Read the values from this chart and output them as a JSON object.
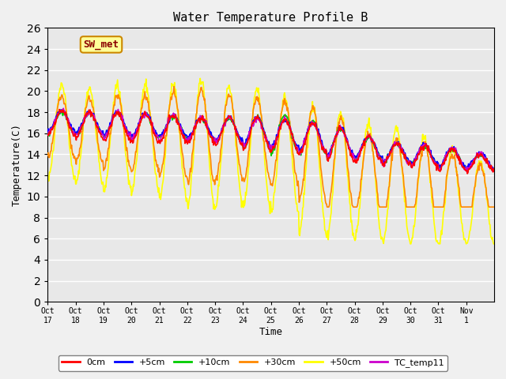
{
  "title": "Water Temperature Profile B",
  "xlabel": "Time",
  "ylabel": "Temperature(C)",
  "ylim": [
    0,
    26
  ],
  "yticks": [
    0,
    2,
    4,
    6,
    8,
    10,
    12,
    14,
    16,
    18,
    20,
    22,
    24,
    26
  ],
  "xtick_labels": [
    "Oct 17",
    "Oct 18",
    "Oct 19",
    "Oct 20",
    "Oct 21",
    "Oct 22",
    "Oct 23",
    "Oct 24",
    "Oct 25",
    "Oct 26",
    "Oct 27",
    "Oct 28",
    "Oct 29",
    "Oct 30",
    "Oct 31",
    "Nov 1"
  ],
  "n_days": 16,
  "background_color": "#e8e8e8",
  "fig_bg_color": "#f0f0f0",
  "line_colors": {
    "0cm": "#ff0000",
    "+5cm": "#0000ff",
    "+10cm": "#00cc00",
    "+30cm": "#ff8800",
    "+50cm": "#ffff00",
    "TC_temp11": "#cc00cc"
  },
  "sw_met_label": "SW_met",
  "sw_met_text_color": "#8b0000",
  "sw_met_bg": "#ffff99",
  "sw_met_edge": "#cc8800",
  "base_0cm": [
    17.0,
    16.8,
    16.6,
    16.5,
    16.4,
    16.3,
    16.2,
    16.0,
    15.8,
    15.5,
    15.0,
    14.5,
    14.0,
    13.8,
    13.5,
    13.2
  ],
  "amp_0cm": [
    1.2,
    1.2,
    1.3,
    1.3,
    1.2,
    1.2,
    1.3,
    1.5,
    1.5,
    1.5,
    1.5,
    1.2,
    1.0,
    1.0,
    1.0,
    0.8
  ],
  "base_5cm": [
    17.2,
    17.0,
    16.9,
    16.8,
    16.7,
    16.5,
    16.4,
    16.2,
    16.0,
    15.7,
    15.2,
    14.7,
    14.2,
    14.0,
    13.7,
    13.4
  ],
  "amp_5cm": [
    1.0,
    1.0,
    1.1,
    1.1,
    1.0,
    1.0,
    1.1,
    1.3,
    1.3,
    1.3,
    1.3,
    1.0,
    0.9,
    0.9,
    0.9,
    0.7
  ],
  "base_10cm": [
    17.0,
    16.9,
    16.8,
    16.7,
    16.6,
    16.4,
    16.3,
    16.1,
    15.9,
    15.6,
    15.1,
    14.6,
    14.1,
    13.9,
    13.6,
    13.3
  ],
  "amp_10cm": [
    1.0,
    1.0,
    1.1,
    1.1,
    1.0,
    1.0,
    1.1,
    1.5,
    1.8,
    1.5,
    1.3,
    1.0,
    0.9,
    0.9,
    0.9,
    0.7
  ],
  "base_30cm": [
    16.5,
    16.3,
    16.1,
    16.0,
    15.9,
    15.7,
    15.6,
    15.4,
    15.0,
    14.0,
    13.0,
    12.0,
    11.5,
    11.0,
    10.5,
    10.0
  ],
  "amp_30cm": [
    3.0,
    3.0,
    3.5,
    3.5,
    4.0,
    4.5,
    4.0,
    4.0,
    4.0,
    4.5,
    4.5,
    4.0,
    4.0,
    4.0,
    3.5,
    3.0
  ],
  "base_50cm": [
    16.0,
    15.8,
    15.5,
    15.5,
    15.2,
    15.0,
    14.8,
    14.5,
    14.0,
    12.5,
    12.0,
    11.5,
    11.0,
    10.5,
    10.0,
    9.5
  ],
  "amp_50cm": [
    4.5,
    4.5,
    5.0,
    5.0,
    5.5,
    6.0,
    5.5,
    5.5,
    5.5,
    6.0,
    6.0,
    5.5,
    5.5,
    5.0,
    4.5,
    4.0
  ],
  "base_tc": [
    17.1,
    16.9,
    16.8,
    16.7,
    16.6,
    16.4,
    16.3,
    16.1,
    15.9,
    15.6,
    15.1,
    14.6,
    14.1,
    13.9,
    13.6,
    13.3
  ],
  "amp_tc": [
    1.1,
    1.1,
    1.2,
    1.2,
    1.1,
    1.1,
    1.2,
    1.4,
    1.4,
    1.4,
    1.4,
    1.1,
    1.0,
    1.0,
    1.0,
    0.8
  ]
}
